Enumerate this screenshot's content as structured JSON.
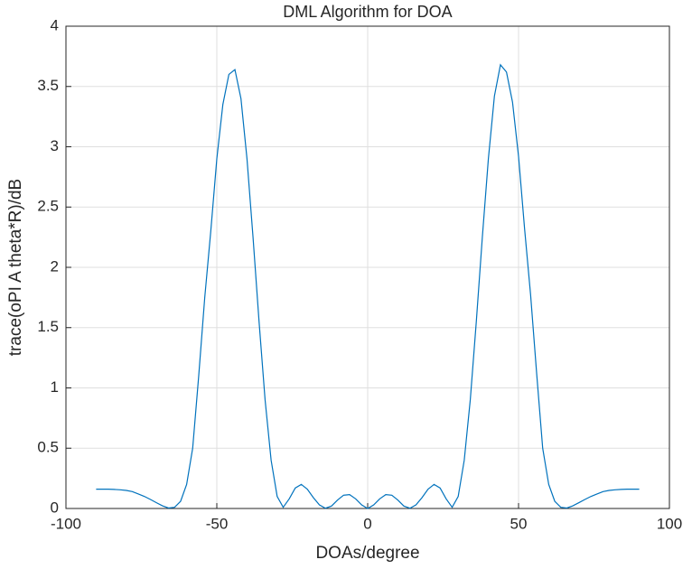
{
  "chart_data": {
    "type": "line",
    "title": "DML Algorithm for DOA",
    "x_label": "DOAs/degree",
    "y_label": "trace(oPI A theta*R)/dB",
    "x": [
      -90,
      -88,
      -86,
      -84,
      -82,
      -80,
      -78,
      -76,
      -74,
      -72,
      -70,
      -68,
      -66,
      -64,
      -62,
      -60,
      -58,
      -56,
      -54,
      -52,
      -50,
      -48,
      -46,
      -44,
      -42,
      -40,
      -38,
      -36,
      -34,
      -32,
      -30,
      -28,
      -26,
      -24,
      -22,
      -20,
      -18,
      -16,
      -14,
      -12,
      -10,
      -8,
      -6,
      -4,
      -2,
      0,
      2,
      4,
      6,
      8,
      10,
      12,
      14,
      16,
      18,
      20,
      22,
      24,
      26,
      28,
      30,
      32,
      34,
      36,
      38,
      40,
      42,
      44,
      46,
      48,
      50,
      52,
      54,
      56,
      58,
      60,
      62,
      64,
      66,
      68,
      70,
      72,
      74,
      76,
      78,
      80,
      82,
      84,
      86,
      88,
      90
    ],
    "series": [
      {
        "name": "trace",
        "color": "#0072bd",
        "values": [
          0.16,
          0.16,
          0.16,
          0.158,
          0.155,
          0.15,
          0.14,
          0.12,
          0.1,
          0.075,
          0.048,
          0.022,
          0.004,
          0.01,
          0.06,
          0.2,
          0.5,
          1.1,
          1.75,
          2.3,
          2.9,
          3.35,
          3.6,
          3.64,
          3.4,
          2.9,
          2.25,
          1.55,
          0.9,
          0.4,
          0.1,
          0.01,
          0.08,
          0.17,
          0.2,
          0.16,
          0.09,
          0.03,
          0.002,
          0.02,
          0.07,
          0.11,
          0.115,
          0.08,
          0.03,
          0.0,
          0.03,
          0.08,
          0.115,
          0.11,
          0.07,
          0.02,
          0.002,
          0.03,
          0.09,
          0.16,
          0.2,
          0.17,
          0.08,
          0.01,
          0.1,
          0.4,
          0.9,
          1.55,
          2.25,
          2.9,
          3.42,
          3.68,
          3.62,
          3.37,
          2.92,
          2.32,
          1.77,
          1.12,
          0.5,
          0.2,
          0.06,
          0.01,
          0.004,
          0.022,
          0.048,
          0.075,
          0.1,
          0.12,
          0.14,
          0.15,
          0.155,
          0.158,
          0.16,
          0.16,
          0.16
        ]
      }
    ],
    "xlim": [
      -100,
      100
    ],
    "xticks": [
      -100,
      -50,
      0,
      50,
      100
    ],
    "ylim": [
      0,
      4
    ],
    "yticks": [
      0,
      0.5,
      1,
      1.5,
      2,
      2.5,
      3,
      3.5,
      4
    ],
    "grid": true
  }
}
